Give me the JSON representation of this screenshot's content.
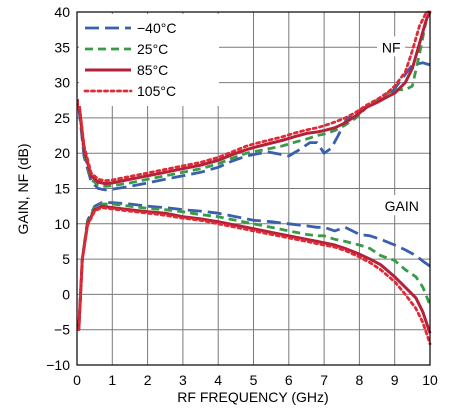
{
  "chart_data": {
    "type": "line",
    "title": "",
    "xlabel": "RF FREQUENCY (GHz)",
    "ylabel": "GAIN, NF (dB)",
    "xlim": [
      0,
      10
    ],
    "ylim": [
      -10,
      40
    ],
    "xticks": [
      0,
      1,
      2,
      3,
      4,
      5,
      6,
      7,
      8,
      9,
      10
    ],
    "yticks": [
      -10,
      -5,
      0,
      5,
      10,
      15,
      20,
      25,
      30,
      35,
      40
    ],
    "xtick_labels": [
      "0",
      "1",
      "2",
      "3",
      "4",
      "5",
      "6",
      "7",
      "8",
      "9",
      "10"
    ],
    "ytick_labels": [
      "−10",
      "−5",
      "0",
      "5",
      "10",
      "15",
      "20",
      "25",
      "30",
      "35",
      "40"
    ],
    "grid": true,
    "legend_position": "top-left",
    "legend": [
      "−40°C",
      "25°C",
      "85°C",
      "105°C"
    ],
    "annotations": [
      {
        "text": "NF",
        "x": 8.9,
        "y": 35
      },
      {
        "text": "GAIN",
        "x": 9.2,
        "y": 12.5
      }
    ],
    "series": [
      {
        "name": "−40°C",
        "group": "NF",
        "color": "#3a5fad",
        "dash": "long-dash",
        "x": [
          0.05,
          0.2,
          0.4,
          0.6,
          0.8,
          1.0,
          1.5,
          2.0,
          2.5,
          3.0,
          3.5,
          4.0,
          4.4,
          4.8,
          5.0,
          5.4,
          5.8,
          6.0,
          6.3,
          6.6,
          6.8,
          7.0,
          7.2,
          7.4,
          7.6,
          7.8,
          8.0,
          8.3,
          8.6,
          8.9,
          9.2,
          9.5,
          9.8,
          10.0
        ],
        "y": [
          26.5,
          19.5,
          16.0,
          15.0,
          14.8,
          14.9,
          15.3,
          15.8,
          16.3,
          16.8,
          17.3,
          18.0,
          18.9,
          19.6,
          19.8,
          20.2,
          19.8,
          19.6,
          20.5,
          21.5,
          21.5,
          20.0,
          20.7,
          22.5,
          24.5,
          25.5,
          26.0,
          26.8,
          27.5,
          28.5,
          30.5,
          32.5,
          32.8,
          32.5
        ]
      },
      {
        "name": "25°C",
        "group": "NF",
        "color": "#3a9a45",
        "dash": "dash",
        "x": [
          0.05,
          0.2,
          0.4,
          0.6,
          0.8,
          1.0,
          1.5,
          2.0,
          2.5,
          3.0,
          3.5,
          4.0,
          4.4,
          4.8,
          5.0,
          5.4,
          5.8,
          6.2,
          6.5,
          6.8,
          7.0,
          7.3,
          7.6,
          7.9,
          8.2,
          8.5,
          8.8,
          9.0,
          9.3,
          9.5,
          9.7,
          9.9,
          10.0
        ],
        "y": [
          27.0,
          20.0,
          16.3,
          15.5,
          15.3,
          15.4,
          15.8,
          16.3,
          16.8,
          17.3,
          17.8,
          18.5,
          19.3,
          20.0,
          20.2,
          20.6,
          21.0,
          21.6,
          22.0,
          22.5,
          22.7,
          23.2,
          24.0,
          25.0,
          26.5,
          27.5,
          28.5,
          29.0,
          29.0,
          29.5,
          34.0,
          39.0,
          40.0
        ]
      },
      {
        "name": "85°C",
        "group": "NF",
        "color": "#b5203a",
        "dash": "solid",
        "x": [
          0.05,
          0.2,
          0.4,
          0.6,
          0.8,
          1.0,
          1.5,
          2.0,
          2.5,
          3.0,
          3.5,
          4.0,
          4.4,
          4.8,
          5.0,
          5.4,
          5.8,
          6.2,
          6.5,
          6.8,
          7.0,
          7.3,
          7.6,
          7.9,
          8.2,
          8.5,
          8.8,
          9.0,
          9.3,
          9.5,
          9.7,
          9.9,
          10.0
        ],
        "y": [
          27.2,
          20.5,
          16.8,
          15.9,
          15.7,
          15.8,
          16.3,
          16.8,
          17.3,
          17.8,
          18.3,
          19.0,
          19.8,
          20.5,
          20.8,
          21.3,
          21.8,
          22.4,
          22.8,
          23.0,
          23.2,
          23.6,
          24.3,
          25.3,
          26.5,
          27.2,
          28.0,
          28.5,
          30.0,
          32.0,
          35.5,
          39.0,
          40.0
        ]
      },
      {
        "name": "105°C",
        "group": "NF",
        "color": "#e02a35",
        "dash": "dot",
        "x": [
          0.05,
          0.2,
          0.4,
          0.6,
          0.8,
          1.0,
          1.5,
          2.0,
          2.5,
          3.0,
          3.5,
          4.0,
          4.4,
          4.8,
          5.0,
          5.4,
          5.8,
          6.2,
          6.5,
          6.8,
          7.0,
          7.3,
          7.6,
          7.9,
          8.2,
          8.5,
          8.8,
          9.0,
          9.3,
          9.5,
          9.7,
          9.9,
          10.0
        ],
        "y": [
          27.5,
          21.0,
          17.2,
          16.3,
          16.1,
          16.2,
          16.7,
          17.2,
          17.7,
          18.2,
          18.7,
          19.4,
          20.2,
          21.0,
          21.3,
          21.8,
          22.3,
          22.9,
          23.3,
          23.6,
          23.9,
          24.4,
          25.0,
          25.8,
          26.8,
          27.6,
          28.6,
          29.5,
          31.5,
          34.5,
          38.0,
          40.0,
          40.0
        ]
      },
      {
        "name": "−40°C",
        "group": "GAIN",
        "color": "#3a5fad",
        "dash": "long-dash",
        "x": [
          0.05,
          0.15,
          0.3,
          0.5,
          0.7,
          1.0,
          1.5,
          2.0,
          2.5,
          3.0,
          3.5,
          4.0,
          4.5,
          5.0,
          5.5,
          6.0,
          6.5,
          6.8,
          7.0,
          7.3,
          7.6,
          8.0,
          8.3,
          8.6,
          9.0,
          9.3,
          9.6,
          9.8,
          10.0
        ],
        "y": [
          -5.0,
          5.0,
          10.5,
          12.5,
          13.0,
          13.0,
          12.8,
          12.5,
          12.3,
          12.0,
          11.8,
          11.5,
          11.0,
          10.5,
          10.3,
          10.0,
          9.7,
          9.5,
          9.5,
          9.0,
          9.5,
          8.5,
          8.3,
          7.8,
          7.0,
          6.3,
          5.5,
          4.7,
          4.0
        ]
      },
      {
        "name": "25°C",
        "group": "GAIN",
        "color": "#3a9a45",
        "dash": "dash",
        "x": [
          0.05,
          0.15,
          0.3,
          0.5,
          0.7,
          1.0,
          1.5,
          2.0,
          2.5,
          3.0,
          3.5,
          4.0,
          4.5,
          5.0,
          5.5,
          6.0,
          6.5,
          6.8,
          7.0,
          7.3,
          7.6,
          8.0,
          8.3,
          8.6,
          9.0,
          9.3,
          9.6,
          9.8,
          10.0
        ],
        "y": [
          -5.0,
          5.0,
          10.3,
          12.3,
          12.8,
          12.8,
          12.5,
          12.2,
          12.0,
          11.7,
          11.3,
          11.0,
          10.5,
          10.0,
          9.5,
          9.0,
          8.5,
          8.3,
          8.3,
          7.8,
          7.5,
          7.0,
          6.5,
          5.5,
          4.8,
          3.5,
          2.5,
          1.0,
          -1.5
        ]
      },
      {
        "name": "85°C",
        "group": "GAIN",
        "color": "#b5203a",
        "dash": "solid",
        "x": [
          0.05,
          0.15,
          0.3,
          0.5,
          0.7,
          1.0,
          1.5,
          2.0,
          2.5,
          3.0,
          3.5,
          4.0,
          4.5,
          5.0,
          5.5,
          6.0,
          6.5,
          6.8,
          7.0,
          7.3,
          7.6,
          8.0,
          8.3,
          8.6,
          9.0,
          9.3,
          9.6,
          9.8,
          10.0
        ],
        "y": [
          -5.0,
          5.0,
          10.0,
          12.0,
          12.5,
          12.3,
          12.0,
          11.7,
          11.5,
          11.0,
          10.7,
          10.3,
          9.8,
          9.3,
          8.8,
          8.3,
          7.8,
          7.5,
          7.3,
          7.0,
          6.5,
          5.7,
          5.0,
          4.2,
          2.5,
          1.0,
          -0.5,
          -2.5,
          -5.5
        ]
      },
      {
        "name": "105°C",
        "group": "GAIN",
        "color": "#e02a35",
        "dash": "dot",
        "x": [
          0.05,
          0.15,
          0.3,
          0.5,
          0.7,
          1.0,
          1.5,
          2.0,
          2.5,
          3.0,
          3.5,
          4.0,
          4.5,
          5.0,
          5.5,
          6.0,
          6.5,
          6.8,
          7.0,
          7.3,
          7.6,
          8.0,
          8.3,
          8.6,
          9.0,
          9.3,
          9.6,
          9.8,
          10.0
        ],
        "y": [
          -5.0,
          5.0,
          9.8,
          11.8,
          12.3,
          12.1,
          11.8,
          11.5,
          11.2,
          10.8,
          10.5,
          10.0,
          9.5,
          9.0,
          8.5,
          8.0,
          7.5,
          7.2,
          7.0,
          6.7,
          6.2,
          5.3,
          4.5,
          3.5,
          1.8,
          0.0,
          -2.0,
          -4.0,
          -7.0
        ]
      }
    ]
  }
}
